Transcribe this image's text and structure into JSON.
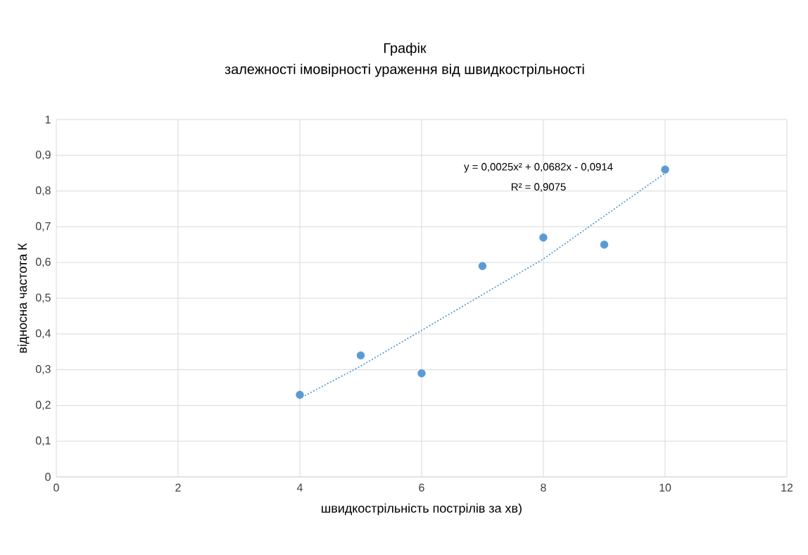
{
  "chart_data": {
    "type": "scatter",
    "title": "Графік",
    "subtitle": "залежності імовірності ураження від швидкострільності",
    "xlabel": "швидкострільність пострілів за хв)",
    "ylabel": "відносна частота К",
    "xlim": [
      0,
      12
    ],
    "xticks": [
      0,
      2,
      4,
      6,
      8,
      10,
      12
    ],
    "ylim": [
      0,
      1
    ],
    "yticks": [
      0,
      {
        "value": 0.1,
        "label": "0,1"
      },
      {
        "value": 0.2,
        "label": "0,2"
      },
      {
        "value": 0.3,
        "label": "0,3"
      },
      {
        "value": 0.4,
        "label": "0,4"
      },
      {
        "value": 0.5,
        "label": "0,5"
      },
      {
        "value": 0.6,
        "label": "0,6"
      },
      {
        "value": 0.7,
        "label": "0,7"
      },
      {
        "value": 0.8,
        "label": "0,8"
      },
      {
        "value": 0.9,
        "label": "0,9"
      },
      1
    ],
    "grid": true,
    "marker": "circle",
    "series": [
      {
        "color": "#5b9bd5",
        "x": [
          4,
          5,
          6,
          7,
          8,
          9,
          10
        ],
        "values": [
          0.23,
          0.34,
          0.29,
          0.59,
          0.67,
          0.65,
          0.86
        ]
      },
      {
        "type": "line",
        "line_style": "dotted",
        "marker": "none",
        "color": "#5b9bd5",
        "x": [
          4,
          5,
          6,
          7,
          8,
          9,
          10
        ],
        "values": [
          0.22,
          0.31,
          0.41,
          0.51,
          0.61,
          0.73,
          0.85
        ]
      }
    ],
    "annotations": [
      "y = 0,0025x² + 0,0682x - 0,0914",
      "R² = 0,9075"
    ]
  }
}
